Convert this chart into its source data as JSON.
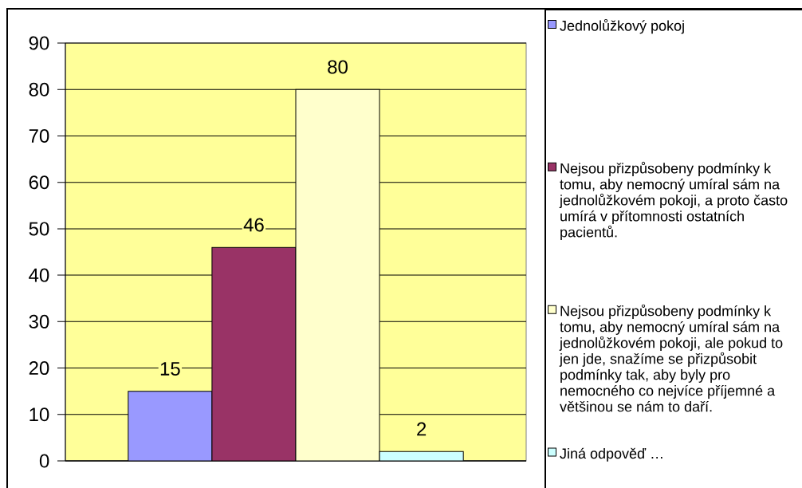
{
  "chart_data": {
    "type": "bar",
    "categories": [
      null
    ],
    "series": [
      {
        "name": "Jednolůžkový pokoj",
        "color": "#9999ff",
        "values": [
          15
        ]
      },
      {
        "name": "Nejsou přizpůsobeny podmínky k tomu, aby nemocný umíral sám na jednolůžkovém pokoji, a proto často umírá v přítomnosti ostatních pacientů.",
        "color": "#993366",
        "values": [
          46
        ]
      },
      {
        "name": "Nejsou přizpůsobeny podmínky k tomu, aby nemocný umíral sám na jednolůžkovém pokoji, ale pokud to jen jde, snažíme se přizpůsobit podmínky tak, aby byly pro nemocného co nejvíce příjemné a většinou se nám to daří.",
        "color": "#ffffcc",
        "values": [
          80
        ]
      },
      {
        "name": "Jiná odpověď …",
        "color": "#ccffff",
        "values": [
          2
        ]
      }
    ],
    "ylim": [
      0,
      90
    ],
    "yticks": [
      0,
      10,
      20,
      30,
      40,
      50,
      60,
      70,
      80,
      90
    ],
    "grid": "y",
    "legend": "right",
    "data_labels": true
  }
}
